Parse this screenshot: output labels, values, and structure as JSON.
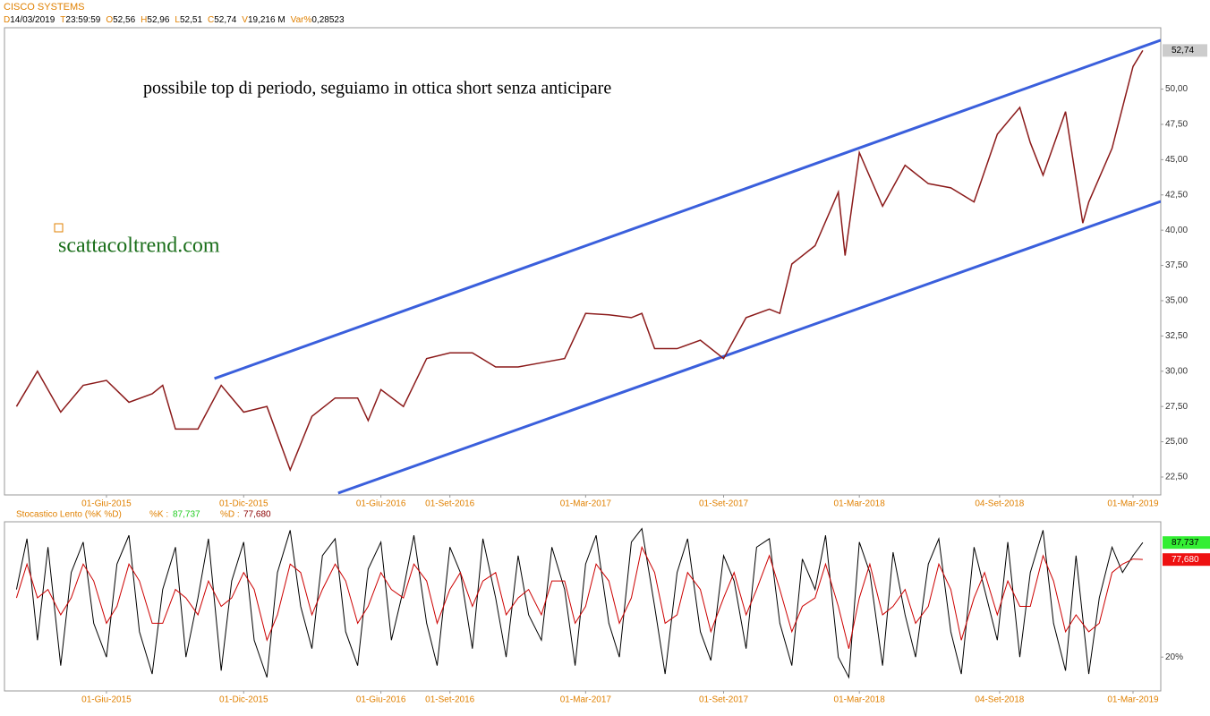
{
  "chart_data": [
    {
      "type": "line",
      "title": "CISCO SYSTEMS",
      "header": [
        {
          "key": "D",
          "value": "14/03/2019"
        },
        {
          "key": "T",
          "value": "23:59:59"
        },
        {
          "key": "O",
          "value": "52,56"
        },
        {
          "key": "H",
          "value": "52,96"
        },
        {
          "key": "L",
          "value": "52,51"
        },
        {
          "key": "C",
          "value": "52,74"
        },
        {
          "key": "V",
          "value": "19,216 M"
        },
        {
          "key": "Var%",
          "value": "0,28523"
        }
      ],
      "annotations": [
        {
          "text": "possibile top di periodo, seguiamo in ottica short senza anticipare",
          "color": "#000000"
        },
        {
          "text": "scattacoltrend.com",
          "color": "#1a6e1a"
        }
      ],
      "x": [
        "2015-02-01",
        "2015-03-01",
        "2015-04-01",
        "2015-05-01",
        "2015-06-01",
        "2015-07-01",
        "2015-08-01",
        "2015-08-15",
        "2015-09-01",
        "2015-10-01",
        "2015-11-01",
        "2015-12-01",
        "2016-01-01",
        "2016-02-01",
        "2016-03-01",
        "2016-04-01",
        "2016-05-01",
        "2016-05-15",
        "2016-06-01",
        "2016-07-01",
        "2016-08-01",
        "2016-09-01",
        "2016-10-01",
        "2016-11-01",
        "2016-12-01",
        "2017-01-01",
        "2017-02-01",
        "2017-03-01",
        "2017-04-01",
        "2017-05-01",
        "2017-05-15",
        "2017-06-01",
        "2017-07-01",
        "2017-08-01",
        "2017-09-01",
        "2017-10-01",
        "2017-11-01",
        "2017-11-15",
        "2017-12-01",
        "2018-01-01",
        "2018-02-01",
        "2018-02-10",
        "2018-03-01",
        "2018-04-01",
        "2018-05-01",
        "2018-06-01",
        "2018-07-01",
        "2018-08-01",
        "2018-09-01",
        "2018-10-01",
        "2018-10-15",
        "2018-11-01",
        "2018-12-01",
        "2018-12-24",
        "2019-01-01",
        "2019-02-01",
        "2019-03-01",
        "2019-03-14"
      ],
      "series": [
        {
          "color": "#8b1a1a",
          "last_value_label": "52,74",
          "values": [
            27.5,
            30.0,
            27.1,
            29.0,
            29.35,
            27.8,
            28.4,
            29.0,
            25.9,
            25.9,
            29.0,
            27.1,
            27.5,
            23.0,
            26.8,
            28.1,
            28.1,
            26.5,
            28.7,
            27.5,
            30.9,
            31.3,
            31.3,
            30.3,
            30.3,
            30.6,
            30.9,
            34.1,
            34.0,
            33.8,
            34.1,
            31.6,
            31.6,
            32.2,
            30.9,
            33.8,
            34.4,
            34.1,
            37.6,
            38.9,
            42.7,
            38.2,
            45.5,
            41.7,
            44.6,
            43.3,
            43.0,
            42.0,
            46.8,
            48.7,
            46.2,
            43.9,
            48.4,
            40.5,
            42.0,
            45.8,
            51.6,
            52.74
          ]
        }
      ],
      "trendlines": [
        {
          "color": "#3a5fdc",
          "x": [
            "2015-10-23",
            "2019-04-07"
          ],
          "values": [
            29.48,
            53.47
          ]
        },
        {
          "color": "#3a5fdc",
          "x": [
            "2016-04-05",
            "2019-04-07"
          ],
          "values": [
            21.36,
            42.04
          ]
        }
      ],
      "xlim": [
        "2015-01-16",
        "2019-04-07"
      ],
      "xticks": [
        {
          "value": "2015-06-01",
          "label": "01-Giu-2015"
        },
        {
          "value": "2015-12-01",
          "label": "01-Dic-2015"
        },
        {
          "value": "2016-06-01",
          "label": "01-Giu-2016"
        },
        {
          "value": "2016-09-01",
          "label": "01-Set-2016"
        },
        {
          "value": "2017-03-01",
          "label": "01-Mar-2017"
        },
        {
          "value": "2017-09-01",
          "label": "01-Set-2017"
        },
        {
          "value": "2018-03-01",
          "label": "01-Mar-2018"
        },
        {
          "value": "2018-09-04",
          "label": "04-Set-2018"
        },
        {
          "value": "2019-03-01",
          "label": "01-Mar-2019"
        }
      ],
      "ylim": [
        21.23,
        54.35
      ],
      "yticks": [
        {
          "value": 22.5,
          "label": "22,50"
        },
        {
          "value": 25,
          "label": "25,00"
        },
        {
          "value": 27.5,
          "label": "27,50"
        },
        {
          "value": 30,
          "label": "30,00"
        },
        {
          "value": 32.5,
          "label": "32,50"
        },
        {
          "value": 35,
          "label": "35,00"
        },
        {
          "value": 37.5,
          "label": "37,50"
        },
        {
          "value": 40,
          "label": "40,00"
        },
        {
          "value": 42.5,
          "label": "42,50"
        },
        {
          "value": 45,
          "label": "45,00"
        },
        {
          "value": 47.5,
          "label": "47,50"
        },
        {
          "value": 50,
          "label": "50,00"
        }
      ]
    },
    {
      "type": "line",
      "title": "Stocastico Lento (%K %D)",
      "x": [
        "2015-02-01",
        "2015-02-15",
        "2015-03-01",
        "2015-03-15",
        "2015-04-01",
        "2015-04-15",
        "2015-05-01",
        "2015-05-15",
        "2015-06-01",
        "2015-06-15",
        "2015-07-01",
        "2015-07-15",
        "2015-08-01",
        "2015-08-15",
        "2015-09-01",
        "2015-09-15",
        "2015-10-01",
        "2015-10-15",
        "2015-11-01",
        "2015-11-15",
        "2015-12-01",
        "2015-12-15",
        "2016-01-01",
        "2016-01-15",
        "2016-02-01",
        "2016-02-15",
        "2016-03-01",
        "2016-03-15",
        "2016-04-01",
        "2016-04-15",
        "2016-05-01",
        "2016-05-15",
        "2016-06-01",
        "2016-06-15",
        "2016-07-01",
        "2016-07-15",
        "2016-08-01",
        "2016-08-15",
        "2016-09-01",
        "2016-09-15",
        "2016-10-01",
        "2016-10-15",
        "2016-11-01",
        "2016-11-15",
        "2016-12-01",
        "2016-12-15",
        "2017-01-01",
        "2017-01-15",
        "2017-02-01",
        "2017-02-15",
        "2017-03-01",
        "2017-03-15",
        "2017-04-01",
        "2017-04-15",
        "2017-05-01",
        "2017-05-15",
        "2017-06-01",
        "2017-06-15",
        "2017-07-01",
        "2017-07-15",
        "2017-08-01",
        "2017-08-15",
        "2017-09-01",
        "2017-09-15",
        "2017-10-01",
        "2017-10-15",
        "2017-11-01",
        "2017-11-15",
        "2017-12-01",
        "2017-12-15",
        "2018-01-01",
        "2018-01-15",
        "2018-02-01",
        "2018-02-15",
        "2018-03-01",
        "2018-03-15",
        "2018-04-01",
        "2018-04-15",
        "2018-05-01",
        "2018-05-15",
        "2018-06-01",
        "2018-06-15",
        "2018-07-01",
        "2018-07-15",
        "2018-08-01",
        "2018-08-15",
        "2018-09-01",
        "2018-09-15",
        "2018-10-01",
        "2018-10-15",
        "2018-11-01",
        "2018-11-15",
        "2018-12-01",
        "2018-12-15",
        "2019-01-01",
        "2019-01-15",
        "2019-02-01",
        "2019-02-15",
        "2019-03-01",
        "2019-03-14"
      ],
      "series": [
        {
          "name": "%K :",
          "color": "#000000",
          "label_color": "#22cc22",
          "box_color": "#33ee33",
          "last_value_label": "87,737",
          "values": [
            60,
            90,
            30,
            85,
            15,
            70,
            88,
            40,
            20,
            75,
            92,
            35,
            10,
            60,
            85,
            20,
            55,
            90,
            12,
            65,
            88,
            30,
            8,
            70,
            95,
            50,
            25,
            80,
            90,
            35,
            15,
            72,
            88,
            30,
            60,
            92,
            40,
            15,
            85,
            70,
            25,
            90,
            55,
            20,
            80,
            45,
            30,
            85,
            60,
            15,
            75,
            92,
            40,
            20,
            88,
            96,
            50,
            10,
            70,
            90,
            35,
            18,
            80,
            65,
            25,
            85,
            90,
            40,
            15,
            78,
            60,
            92,
            20,
            8,
            88,
            70,
            15,
            82,
            45,
            20,
            75,
            90,
            35,
            10,
            85,
            60,
            30,
            88,
            20,
            70,
            95,
            40,
            12,
            80,
            10,
            55,
            85,
            70,
            80,
            87.737
          ]
        },
        {
          "name": "%D :",
          "color": "#cc0000",
          "label_color": "#8b0000",
          "box_color": "#ee1111",
          "last_value_label": "77,680",
          "values": [
            55,
            75,
            55,
            60,
            45,
            55,
            75,
            65,
            40,
            50,
            75,
            65,
            40,
            40,
            60,
            55,
            45,
            65,
            50,
            55,
            70,
            60,
            30,
            45,
            75,
            70,
            45,
            60,
            75,
            65,
            40,
            50,
            70,
            60,
            55,
            75,
            65,
            40,
            60,
            70,
            50,
            65,
            70,
            45,
            55,
            60,
            45,
            65,
            65,
            40,
            50,
            75,
            65,
            40,
            55,
            85,
            70,
            40,
            45,
            70,
            60,
            35,
            55,
            70,
            45,
            60,
            80,
            60,
            35,
            50,
            55,
            75,
            50,
            25,
            55,
            75,
            45,
            50,
            60,
            40,
            50,
            75,
            60,
            30,
            55,
            70,
            45,
            65,
            50,
            50,
            80,
            65,
            35,
            45,
            35,
            40,
            70,
            75,
            78,
            77.68
          ]
        }
      ],
      "xlim": [
        "2015-01-16",
        "2019-04-07"
      ],
      "xticks": [
        {
          "value": "2015-06-01",
          "label": "01-Giu-2015"
        },
        {
          "value": "2015-12-01",
          "label": "01-Dic-2015"
        },
        {
          "value": "2016-06-01",
          "label": "01-Giu-2016"
        },
        {
          "value": "2016-09-01",
          "label": "01-Set-2016"
        },
        {
          "value": "2017-03-01",
          "label": "01-Mar-2017"
        },
        {
          "value": "2017-09-01",
          "label": "01-Set-2017"
        },
        {
          "value": "2018-03-01",
          "label": "01-Mar-2018"
        },
        {
          "value": "2018-09-04",
          "label": "04-Set-2018"
        },
        {
          "value": "2019-03-01",
          "label": "01-Mar-2019"
        }
      ],
      "ylim": [
        0,
        100
      ],
      "yticks": [
        {
          "value": 20,
          "label": "20%"
        }
      ]
    }
  ]
}
